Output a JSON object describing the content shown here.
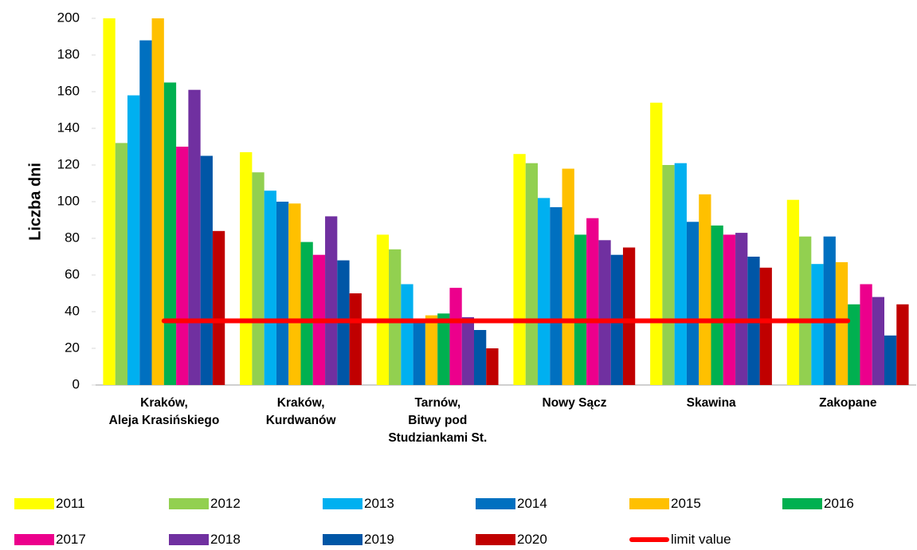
{
  "chart_data": {
    "type": "bar",
    "y_label": "Liczba dni",
    "categories": [
      "Kraków,\nAleja Krasińskiego",
      "Kraków,\nKurdwanów",
      "Tarnów,\nBitwy pod\nStudziankami St.",
      "Nowy Sącz",
      "Skawina",
      "Zakopane"
    ],
    "series": [
      {
        "name": "2011",
        "color": "#ffff00",
        "values": [
          200,
          127,
          82,
          126,
          154,
          101
        ]
      },
      {
        "name": "2012",
        "color": "#92d050",
        "values": [
          132,
          116,
          74,
          121,
          120,
          81
        ]
      },
      {
        "name": "2013",
        "color": "#00b0f0",
        "values": [
          158,
          106,
          55,
          102,
          121,
          66
        ]
      },
      {
        "name": "2014",
        "color": "#0070c0",
        "values": [
          188,
          100,
          35,
          97,
          89,
          81
        ]
      },
      {
        "name": "2015",
        "color": "#ffc000",
        "values": [
          200,
          99,
          38,
          118,
          104,
          67
        ]
      },
      {
        "name": "2016",
        "color": "#00b050",
        "values": [
          165,
          78,
          39,
          82,
          87,
          44
        ]
      },
      {
        "name": "2017",
        "color": "#ec008c",
        "values": [
          130,
          71,
          53,
          91,
          82,
          55
        ]
      },
      {
        "name": "2018",
        "color": "#7030a0",
        "values": [
          161,
          92,
          37,
          79,
          83,
          48
        ]
      },
      {
        "name": "2019",
        "color": "#0056a6",
        "values": [
          125,
          68,
          30,
          71,
          70,
          27
        ]
      },
      {
        "name": "2020",
        "color": "#c00000",
        "values": [
          84,
          50,
          20,
          75,
          64,
          44
        ]
      },
      {
        "name": "limit value",
        "color": "#ff0000",
        "type": "line",
        "values": [
          35,
          35,
          35,
          35,
          35,
          35
        ]
      }
    ],
    "ylim": [
      0,
      200
    ],
    "yticks": [
      0,
      20,
      40,
      60,
      80,
      100,
      120,
      140,
      160,
      180,
      200
    ],
    "grid": false,
    "legend": "bottom"
  }
}
